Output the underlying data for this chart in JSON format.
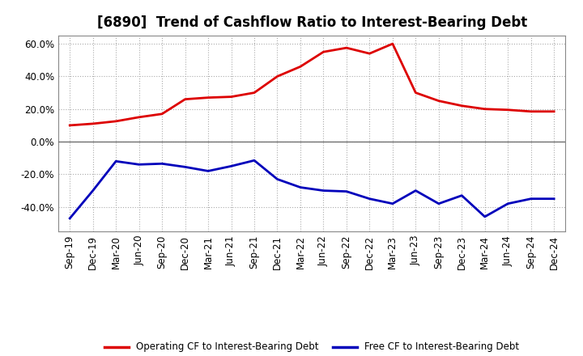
{
  "title": "[6890]  Trend of Cashflow Ratio to Interest-Bearing Debt",
  "x_labels": [
    "Sep-19",
    "Dec-19",
    "Mar-20",
    "Jun-20",
    "Sep-20",
    "Dec-20",
    "Mar-21",
    "Jun-21",
    "Sep-21",
    "Dec-21",
    "Mar-22",
    "Jun-22",
    "Sep-22",
    "Dec-22",
    "Mar-23",
    "Jun-23",
    "Sep-23",
    "Dec-23",
    "Mar-24",
    "Jun-24",
    "Sep-24",
    "Dec-24"
  ],
  "operating_cf": [
    10.0,
    11.0,
    12.5,
    15.0,
    17.0,
    26.0,
    27.0,
    27.5,
    30.0,
    40.0,
    46.0,
    55.0,
    57.5,
    54.0,
    60.0,
    30.0,
    25.0,
    22.0,
    20.0,
    19.5,
    18.5,
    18.5
  ],
  "free_cf": [
    -47.0,
    -30.0,
    -12.0,
    -14.0,
    -13.5,
    -15.5,
    -18.0,
    -15.0,
    -11.5,
    -23.0,
    -28.0,
    -30.0,
    -30.5,
    -35.0,
    -38.0,
    -30.0,
    -38.0,
    -33.0,
    -46.0,
    -38.0,
    -35.0,
    -35.0
  ],
  "operating_color": "#dd0000",
  "free_color": "#0000bb",
  "background_color": "#ffffff",
  "plot_bg_color": "#ffffff",
  "grid_color": "#aaaaaa",
  "ylim": [
    -55,
    65
  ],
  "yticks": [
    -40.0,
    -20.0,
    0.0,
    20.0,
    40.0,
    60.0
  ],
  "legend_labels": [
    "Operating CF to Interest-Bearing Debt",
    "Free CF to Interest-Bearing Debt"
  ],
  "title_fontsize": 12,
  "tick_fontsize": 8.5
}
